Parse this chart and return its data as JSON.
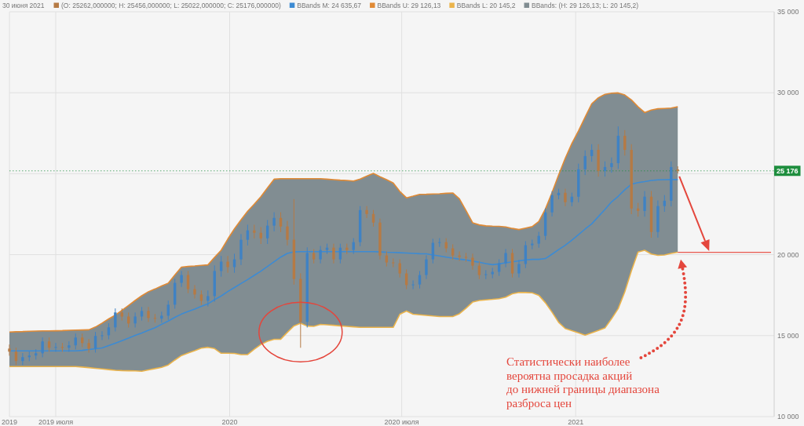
{
  "chart_data": {
    "type": "candlestick",
    "legend": "top left",
    "legend_title": "30 июня 2021",
    "grid": true,
    "x": [
      "2019-05-13",
      "2019-05-20",
      "2019-05-27",
      "2019-06-03",
      "2019-06-10",
      "2019-06-17",
      "2019-06-24",
      "2019-07-01",
      "2019-07-08",
      "2019-07-15",
      "2019-07-22",
      "2019-07-29",
      "2019-08-05",
      "2019-08-12",
      "2019-08-19",
      "2019-08-26",
      "2019-09-02",
      "2019-09-09",
      "2019-09-16",
      "2019-09-23",
      "2019-09-30",
      "2019-10-07",
      "2019-10-14",
      "2019-10-21",
      "2019-10-28",
      "2019-11-04",
      "2019-11-11",
      "2019-11-18",
      "2019-11-25",
      "2019-12-02",
      "2019-12-09",
      "2019-12-16",
      "2019-12-23",
      "2019-12-30",
      "2020-01-06",
      "2020-01-13",
      "2020-01-20",
      "2020-01-27",
      "2020-02-03",
      "2020-02-10",
      "2020-02-17",
      "2020-02-24",
      "2020-03-02",
      "2020-03-09",
      "2020-03-16",
      "2020-03-23",
      "2020-03-30",
      "2020-04-06",
      "2020-04-13",
      "2020-04-20",
      "2020-04-27",
      "2020-05-04",
      "2020-05-11",
      "2020-05-18",
      "2020-05-25",
      "2020-06-01",
      "2020-06-08",
      "2020-06-15",
      "2020-06-22",
      "2020-06-29",
      "2020-07-06",
      "2020-07-13",
      "2020-07-20",
      "2020-07-27",
      "2020-08-03",
      "2020-08-10",
      "2020-08-17",
      "2020-08-24",
      "2020-08-31",
      "2020-09-07",
      "2020-09-14",
      "2020-09-21",
      "2020-09-28",
      "2020-10-05",
      "2020-10-12",
      "2020-10-19",
      "2020-10-26",
      "2020-11-02",
      "2020-11-09",
      "2020-11-16",
      "2020-11-23",
      "2020-11-30",
      "2020-12-07",
      "2020-12-14",
      "2020-12-21",
      "2020-12-28",
      "2021-01-04",
      "2021-01-11",
      "2021-01-18",
      "2021-01-25",
      "2021-02-01",
      "2021-02-08",
      "2021-02-15",
      "2021-02-22",
      "2021-03-01",
      "2021-03-08",
      "2021-03-15",
      "2021-03-22",
      "2021-03-29",
      "2021-04-05",
      "2021-04-12",
      "2021-04-19"
    ],
    "xlim": [
      "2019-05-13",
      "2021-07-30"
    ],
    "xticks": [
      {
        "value": "2019-05-13",
        "label": "2019"
      },
      {
        "value": "2019-07-01",
        "label": "2019 июля"
      },
      {
        "value": "2020-01-01",
        "label": "2020"
      },
      {
        "value": "2020-07-01",
        "label": "2020 июля"
      },
      {
        "value": "2021-01-01",
        "label": "2021"
      }
    ],
    "ylim": [
      10000,
      35000
    ],
    "yticks": [
      {
        "value": 10000,
        "label": "10 000"
      },
      {
        "value": 15000,
        "label": "15 000"
      },
      {
        "value": 20000,
        "label": "20 000"
      },
      {
        "value": 25000,
        "label": null
      },
      {
        "value": 30000,
        "label": "30 000"
      },
      {
        "value": 35000,
        "label": "35 000"
      }
    ],
    "series": [
      {
        "type": "candlestick",
        "name": "(O: 25262,000000; H: 25456,000000; L: 25022,000000; C: 25176,000000)",
        "color": "#b57a45",
        "colors": [
          "#b57a45",
          "#b57a45",
          "#3f82c4",
          "#3f82c4",
          "#3f82c4",
          "#3f82c4",
          "#b57a45",
          "#3f82c4",
          "#b57a45",
          "#3f82c4",
          "#3f82c4",
          "#b57a45",
          "#b57a45",
          "#3f82c4",
          "#3f82c4",
          "#3f82c4",
          "#3f82c4",
          "#b57a45",
          "#b57a45",
          "#3f82c4",
          "#3f82c4",
          "#b57a45",
          "#b57a45",
          "#3f82c4",
          "#3f82c4",
          "#3f82c4",
          "#3f82c4",
          "#b57a45",
          "#b57a45",
          "#b57a45",
          "#3f82c4",
          "#3f82c4",
          "#3f82c4",
          "#b57a45",
          "#3f82c4",
          "#3f82c4",
          "#3f82c4",
          "#b57a45",
          "#b57a45",
          "#3f82c4",
          "#3f82c4",
          "#b57a45",
          "#b57a45",
          "#b57a45",
          "#b57a45",
          "#3f82c4",
          "#b57a45",
          "#3f82c4",
          "#3f82c4",
          "#b57a45",
          "#3f82c4",
          "#b57a45",
          "#3f82c4",
          "#3f82c4",
          "#b57a45",
          "#b57a45",
          "#b57a45",
          "#b57a45",
          "#b57a45",
          "#b57a45",
          "#b57a45",
          "#3f82c4",
          "#3f82c4",
          "#3f82c4",
          "#3f82c4",
          "#3f82c4",
          "#b57a45",
          "#b57a45",
          "#b57a45",
          "#b57a45",
          "#b57a45",
          "#b57a45",
          "#3f82c4",
          "#3f82c4",
          "#3f82c4",
          "#3f82c4",
          "#b57a45",
          "#3f82c4",
          "#3f82c4",
          "#3f82c4",
          "#3f82c4",
          "#3f82c4",
          "#3f82c4",
          "#3f82c4",
          "#b57a45",
          "#3f82c4",
          "#3f82c4",
          "#3f82c4",
          "#3f82c4",
          "#b57a45",
          "#3f82c4",
          "#3f82c4",
          "#3f82c4",
          "#b57a45",
          "#b57a45",
          "#b57a45",
          "#3f82c4",
          "#b57a45",
          "#3f82c4",
          "#3f82c4",
          "#3f82c4",
          "#b57a45"
        ],
        "ohlc": [
          [
            14200,
            14450,
            13760,
            14010
          ],
          [
            14010,
            14260,
            13180,
            13430
          ],
          [
            13430,
            13920,
            13180,
            13670
          ],
          [
            13670,
            14020,
            13420,
            13770
          ],
          [
            13770,
            14160,
            13520,
            13910
          ],
          [
            13910,
            14890,
            13660,
            14640
          ],
          [
            14640,
            14890,
            14000,
            14250
          ],
          [
            14250,
            14550,
            14000,
            14300
          ],
          [
            14300,
            14550,
            14000,
            14250
          ],
          [
            14250,
            14650,
            14000,
            14400
          ],
          [
            14400,
            15130,
            14150,
            14880
          ],
          [
            14880,
            15130,
            14290,
            14540
          ],
          [
            14540,
            14790,
            13950,
            14200
          ],
          [
            14200,
            15230,
            13950,
            14980
          ],
          [
            14980,
            15270,
            14730,
            15020
          ],
          [
            15020,
            15760,
            14770,
            15510
          ],
          [
            15510,
            16680,
            15260,
            16430
          ],
          [
            16430,
            16680,
            15930,
            16180
          ],
          [
            16180,
            16430,
            15500,
            15750
          ],
          [
            15750,
            16430,
            15500,
            16180
          ],
          [
            16180,
            16770,
            15930,
            16520
          ],
          [
            16520,
            16770,
            15840,
            16090
          ],
          [
            16090,
            16340,
            15800,
            16050
          ],
          [
            16050,
            16480,
            15800,
            16230
          ],
          [
            16230,
            17160,
            15980,
            16910
          ],
          [
            16910,
            18510,
            16660,
            18260
          ],
          [
            18260,
            18990,
            18010,
            18740
          ],
          [
            18740,
            18990,
            17620,
            17870
          ],
          [
            17870,
            18120,
            17290,
            17540
          ],
          [
            17540,
            17790,
            16900,
            17150
          ],
          [
            17150,
            17790,
            16800,
            17440
          ],
          [
            17440,
            19340,
            17090,
            18990
          ],
          [
            18990,
            19920,
            18640,
            19570
          ],
          [
            19570,
            19920,
            18880,
            19230
          ],
          [
            19230,
            20060,
            18880,
            19710
          ],
          [
            19710,
            21270,
            19360,
            20920
          ],
          [
            20920,
            21850,
            20570,
            21500
          ],
          [
            21500,
            21850,
            21000,
            21350
          ],
          [
            21350,
            21700,
            20660,
            21010
          ],
          [
            21010,
            22140,
            20660,
            21790
          ],
          [
            21790,
            22620,
            21440,
            22270
          ],
          [
            22270,
            22620,
            21390,
            21740
          ],
          [
            21740,
            22090,
            20570,
            20920
          ],
          [
            20920,
            23430,
            18150,
            18500
          ],
          [
            18500,
            18850,
            14250,
            15850
          ],
          [
            15850,
            20450,
            15500,
            20100
          ],
          [
            20100,
            20350,
            19460,
            19710
          ],
          [
            19710,
            20540,
            19460,
            20290
          ],
          [
            20290,
            20680,
            20040,
            20430
          ],
          [
            20430,
            20680,
            19460,
            19710
          ],
          [
            19710,
            20680,
            19460,
            20430
          ],
          [
            20430,
            20680,
            20040,
            20290
          ],
          [
            20290,
            21020,
            20040,
            20770
          ],
          [
            20770,
            23000,
            20520,
            22750
          ],
          [
            22750,
            23000,
            22260,
            22510
          ],
          [
            22510,
            22760,
            21730,
            21980
          ],
          [
            21980,
            22230,
            19700,
            19950
          ],
          [
            19950,
            20200,
            19270,
            19520
          ],
          [
            19520,
            19770,
            19220,
            19470
          ],
          [
            19470,
            19720,
            18590,
            18840
          ],
          [
            18840,
            19090,
            17870,
            18120
          ],
          [
            18120,
            18410,
            17870,
            18160
          ],
          [
            18160,
            18990,
            17910,
            18740
          ],
          [
            18740,
            19960,
            18490,
            19710
          ],
          [
            19710,
            20980,
            19460,
            20730
          ],
          [
            20730,
            21020,
            20480,
            20770
          ],
          [
            20770,
            21020,
            20140,
            20390
          ],
          [
            20390,
            20640,
            19700,
            19950
          ],
          [
            19950,
            20200,
            19610,
            19860
          ],
          [
            19860,
            20110,
            19560,
            19810
          ],
          [
            19810,
            20060,
            19070,
            19320
          ],
          [
            19320,
            19570,
            18490,
            18740
          ],
          [
            18740,
            19040,
            18490,
            18790
          ],
          [
            18790,
            19190,
            18540,
            18940
          ],
          [
            18940,
            19720,
            18690,
            19470
          ],
          [
            19470,
            20350,
            19220,
            20100
          ],
          [
            20100,
            20350,
            18590,
            18840
          ],
          [
            18840,
            19670,
            18590,
            19420
          ],
          [
            19420,
            20830,
            19170,
            20580
          ],
          [
            20580,
            20930,
            20330,
            20680
          ],
          [
            20680,
            21410,
            20430,
            21160
          ],
          [
            21160,
            22860,
            20910,
            22610
          ],
          [
            22610,
            23920,
            22360,
            23670
          ],
          [
            23670,
            24070,
            23420,
            23820
          ],
          [
            23820,
            24070,
            22990,
            23240
          ],
          [
            23240,
            23830,
            22990,
            23580
          ],
          [
            23580,
            25620,
            23230,
            25270
          ],
          [
            25270,
            26440,
            24920,
            26090
          ],
          [
            26090,
            26820,
            25740,
            26470
          ],
          [
            26470,
            26820,
            24820,
            25170
          ],
          [
            25170,
            25760,
            24820,
            25410
          ],
          [
            25410,
            26000,
            25060,
            25650
          ],
          [
            25650,
            27920,
            25300,
            27340
          ],
          [
            27340,
            27690,
            26120,
            26470
          ],
          [
            26470,
            26820,
            22500,
            22850
          ],
          [
            22850,
            23200,
            22350,
            22700
          ],
          [
            22700,
            23930,
            22350,
            23580
          ],
          [
            23580,
            23930,
            21050,
            21400
          ],
          [
            21400,
            23350,
            21050,
            23000
          ],
          [
            23000,
            23680,
            22650,
            23330
          ],
          [
            23330,
            25760,
            22980,
            25410
          ],
          [
            25262,
            25456,
            25022,
            25176
          ]
        ]
      },
      {
        "type": "line",
        "name": "BBands M: 24 635,67",
        "color": "#3d8bd3",
        "values": [
          14060,
          14060,
          14060,
          14060,
          14060,
          14060,
          14060,
          14060,
          14060,
          14060,
          14060,
          14090,
          14140,
          14190,
          14240,
          14380,
          14530,
          14690,
          14840,
          15010,
          15160,
          15330,
          15490,
          15700,
          15900,
          16130,
          16330,
          16490,
          16640,
          16810,
          16960,
          17220,
          17450,
          17720,
          17970,
          18220,
          18460,
          18720,
          18980,
          19270,
          19560,
          19850,
          20080,
          20170,
          20190,
          20190,
          20190,
          20190,
          20190,
          20190,
          20190,
          20190,
          20190,
          20190,
          20190,
          20190,
          20170,
          20150,
          20140,
          20120,
          20100,
          20080,
          20060,
          20050,
          19980,
          19920,
          19850,
          19790,
          19720,
          19670,
          19600,
          19530,
          19450,
          19380,
          19430,
          19500,
          19560,
          19620,
          19680,
          19710,
          19710,
          19760,
          20030,
          20310,
          20580,
          20900,
          21230,
          21580,
          21900,
          22350,
          22790,
          23260,
          23600,
          24010,
          24350,
          24450,
          24510,
          24580,
          24620,
          24630,
          24640,
          24640
        ],
        "upper": [
          15220,
          15240,
          15250,
          15270,
          15280,
          15290,
          15290,
          15300,
          15310,
          15330,
          15340,
          15350,
          15360,
          15530,
          15770,
          16030,
          16270,
          16560,
          16860,
          17170,
          17460,
          17710,
          17880,
          18070,
          18240,
          18740,
          19230,
          19270,
          19300,
          19340,
          19370,
          19830,
          20270,
          20960,
          21590,
          22150,
          22680,
          23120,
          23580,
          24120,
          24660,
          24690,
          24690,
          24690,
          24690,
          24690,
          24690,
          24690,
          24660,
          24630,
          24600,
          24580,
          24550,
          24670,
          24850,
          25020,
          24810,
          24630,
          24430,
          23900,
          23510,
          23610,
          23720,
          23730,
          23750,
          23760,
          23790,
          23810,
          23450,
          22720,
          21970,
          21840,
          21780,
          21760,
          21750,
          21710,
          21620,
          21550,
          21640,
          21730,
          22050,
          22820,
          23830,
          24920,
          25950,
          26870,
          27640,
          28490,
          29320,
          29690,
          29900,
          29970,
          29990,
          29860,
          29560,
          29130,
          28780,
          28930,
          29010,
          29030,
          29050,
          29130
        ],
        "lower": [
          13090,
          13090,
          13090,
          13090,
          13090,
          13090,
          13090,
          13090,
          13090,
          13090,
          13090,
          13060,
          13020,
          12980,
          12940,
          12900,
          12860,
          12840,
          12830,
          12820,
          12800,
          12880,
          12960,
          13040,
          13190,
          13490,
          13770,
          13930,
          14070,
          14230,
          14280,
          14200,
          13910,
          13910,
          13900,
          13830,
          13830,
          14160,
          14450,
          14650,
          14770,
          14780,
          15200,
          15600,
          15770,
          15590,
          15570,
          15690,
          15670,
          15640,
          15600,
          15570,
          15540,
          15510,
          15510,
          15510,
          15510,
          15510,
          15510,
          16320,
          16520,
          16320,
          16290,
          16250,
          16210,
          16180,
          16180,
          16180,
          16350,
          16690,
          17070,
          17170,
          17210,
          17240,
          17280,
          17380,
          17580,
          17670,
          17660,
          17640,
          17490,
          17030,
          16450,
          15820,
          15440,
          15300,
          15170,
          15030,
          15170,
          15320,
          15470,
          16040,
          16670,
          17700,
          19000,
          20160,
          20270,
          20040,
          19960,
          19980,
          20080,
          20150
        ]
      },
      {
        "type": "line",
        "name": "BBands U: 29 126,13",
        "color": "#e08a35",
        "values": [
          15220,
          15240,
          15250,
          15270,
          15280,
          15290,
          15290,
          15300,
          15310,
          15330,
          15340,
          15350,
          15360,
          15530,
          15770,
          16030,
          16270,
          16560,
          16860,
          17170,
          17460,
          17710,
          17880,
          18070,
          18240,
          18740,
          19230,
          19270,
          19300,
          19340,
          19370,
          19830,
          20270,
          20960,
          21590,
          22150,
          22680,
          23120,
          23580,
          24120,
          24660,
          24690,
          24690,
          24690,
          24690,
          24690,
          24690,
          24690,
          24660,
          24630,
          24600,
          24580,
          24550,
          24670,
          24850,
          25020,
          24810,
          24630,
          24430,
          23900,
          23510,
          23610,
          23720,
          23730,
          23750,
          23760,
          23790,
          23810,
          23450,
          22720,
          21970,
          21840,
          21780,
          21760,
          21750,
          21710,
          21620,
          21550,
          21640,
          21730,
          22050,
          22820,
          23830,
          24920,
          25950,
          26870,
          27640,
          28490,
          29320,
          29690,
          29900,
          29970,
          29990,
          29860,
          29560,
          29130,
          28780,
          28930,
          29010,
          29030,
          29050,
          29130
        ]
      },
      {
        "type": "line",
        "name": "BBands L: 20 145,2",
        "color": "#ebb44c",
        "values": [
          13090,
          13090,
          13090,
          13090,
          13090,
          13090,
          13090,
          13090,
          13090,
          13090,
          13090,
          13060,
          13020,
          12980,
          12940,
          12900,
          12860,
          12840,
          12830,
          12820,
          12800,
          12880,
          12960,
          13040,
          13190,
          13490,
          13770,
          13930,
          14070,
          14230,
          14280,
          14200,
          13910,
          13910,
          13900,
          13830,
          13830,
          14160,
          14450,
          14650,
          14770,
          14780,
          15200,
          15600,
          15770,
          15590,
          15570,
          15690,
          15670,
          15640,
          15600,
          15570,
          15540,
          15510,
          15510,
          15510,
          15510,
          15510,
          15510,
          16320,
          16520,
          16320,
          16290,
          16250,
          16210,
          16180,
          16180,
          16180,
          16350,
          16690,
          17070,
          17170,
          17210,
          17240,
          17280,
          17380,
          17580,
          17670,
          17660,
          17640,
          17490,
          17030,
          16450,
          15820,
          15440,
          15300,
          15170,
          15030,
          15170,
          15320,
          15470,
          16040,
          16670,
          17700,
          19000,
          20160,
          20270,
          20040,
          19960,
          19980,
          20080,
          20150
        ]
      }
    ],
    "ref_lines": [
      {
        "axis": "y",
        "value": 25176,
        "label": "25 176",
        "color": "#1e8e3e",
        "line_style": "dotted"
      },
      {
        "axis": "y",
        "value": 20145,
        "color": "#e8574e"
      }
    ],
    "annotations": [
      "BBands: (H: 29 126,13; L: 20 145,2)",
      "Статистически наиболее\nвероятна просадка акций\nдо нижней границы диапазона\nразброса цен"
    ]
  }
}
